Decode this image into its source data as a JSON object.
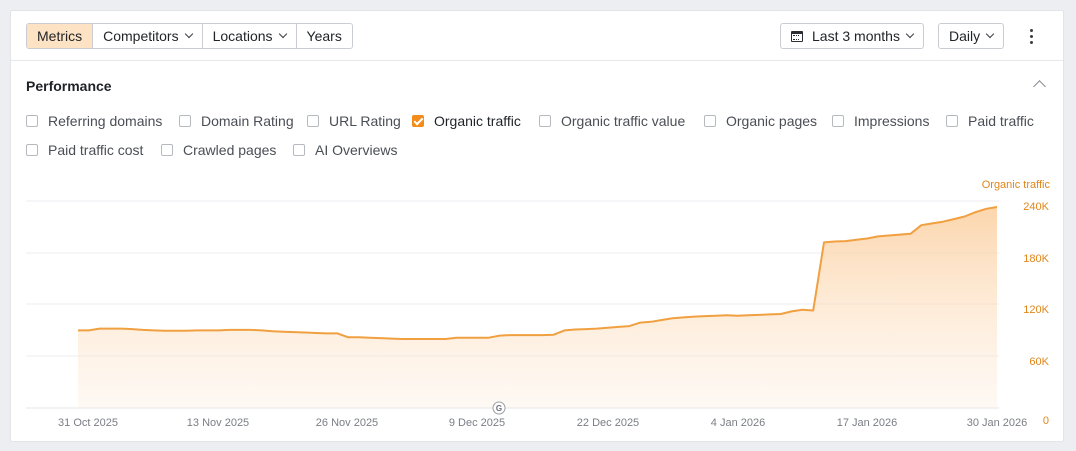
{
  "toolbar": {
    "segments": [
      {
        "label": "Metrics",
        "active": true,
        "dropdown": false
      },
      {
        "label": "Competitors",
        "active": false,
        "dropdown": true
      },
      {
        "label": "Locations",
        "active": false,
        "dropdown": true
      },
      {
        "label": "Years",
        "active": false,
        "dropdown": false
      }
    ],
    "date_range": "Last 3 months",
    "granularity": "Daily",
    "more_icon": "kebab-icon",
    "calendar_icon": "calendar-icon"
  },
  "performance": {
    "title": "Performance",
    "metrics": [
      {
        "label": "Referring domains",
        "checked": false
      },
      {
        "label": "Domain Rating",
        "checked": false
      },
      {
        "label": "URL Rating",
        "checked": false
      },
      {
        "label": "Organic traffic",
        "checked": true
      },
      {
        "label": "Organic traffic value",
        "checked": false
      },
      {
        "label": "Organic pages",
        "checked": false
      },
      {
        "label": "Impressions",
        "checked": false
      },
      {
        "label": "Paid traffic",
        "checked": false
      },
      {
        "label": "Paid traffic cost",
        "checked": false
      },
      {
        "label": "Crawled pages",
        "checked": false
      },
      {
        "label": "AI Overviews",
        "checked": false
      }
    ]
  },
  "colors": {
    "accent": "#f28c1b",
    "line": "#f0a040",
    "active_segment": "#fde3c4"
  },
  "chart_data": {
    "type": "area",
    "series": [
      {
        "name": "Organic traffic",
        "start_date": "2025-10-30",
        "values": [
          90000,
          90000,
          92000,
          92000,
          92000,
          91500,
          90500,
          90000,
          89500,
          89500,
          89500,
          90000,
          90000,
          90000,
          90500,
          90500,
          90500,
          90000,
          89000,
          88500,
          88000,
          87500,
          87000,
          86500,
          86500,
          82000,
          82000,
          81500,
          81000,
          80500,
          80000,
          80000,
          80000,
          80000,
          80000,
          81500,
          81500,
          81500,
          81500,
          84000,
          84500,
          84500,
          84500,
          84500,
          85000,
          90000,
          91000,
          91500,
          92000,
          93000,
          94000,
          95000,
          99000,
          100000,
          102000,
          104000,
          105000,
          106000,
          106500,
          107000,
          107500,
          107000,
          107500,
          108000,
          108500,
          109000,
          112000,
          114000,
          113000,
          192000,
          193000,
          193500,
          195000,
          196500,
          199000,
          200000,
          201000,
          202000,
          212000,
          214000,
          216000,
          219000,
          222000,
          227000,
          231000,
          233000
        ]
      }
    ],
    "x_ticks": [
      "31 Oct 2025",
      "13 Nov 2025",
      "26 Nov 2025",
      "9 Dec 2025",
      "22 Dec 2025",
      "4 Jan 2026",
      "17 Jan 2026",
      "30 Jan 2026"
    ],
    "y_ticks": [
      "0",
      "60K",
      "120K",
      "180K",
      "240K"
    ],
    "y_range": [
      0,
      240000
    ],
    "y_axis_side": "right",
    "y_axis_label": "Organic traffic",
    "grid": true,
    "annotation": "G"
  }
}
